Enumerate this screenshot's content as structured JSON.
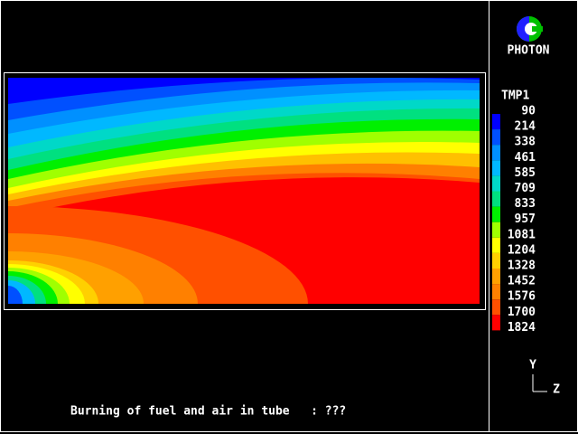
{
  "logo": "PHOTON",
  "legend": {
    "title": "TMP1",
    "levels": [
      90,
      214,
      338,
      461,
      585,
      709,
      833,
      957,
      1081,
      1204,
      1328,
      1452,
      1576,
      1700,
      1824
    ],
    "colors": [
      "#0000ff",
      "#0050ff",
      "#0090ff",
      "#00b8ff",
      "#00d8c8",
      "#00e080",
      "#00f000",
      "#a0ff00",
      "#ffff00",
      "#ffd000",
      "#ffa000",
      "#ff8000",
      "#ff5000",
      "#ff0000"
    ]
  },
  "axes": {
    "vertical": "Y",
    "horizontal": "Z"
  },
  "caption": "Burning of fuel and air in tube   : ???"
}
